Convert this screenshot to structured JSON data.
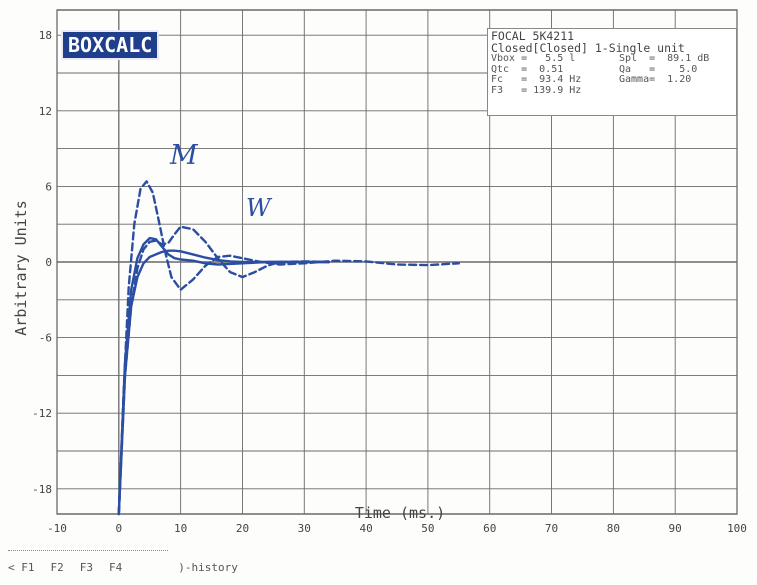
{
  "app": {
    "logo": "BOXCALC"
  },
  "info": {
    "driver": "FOCAL 5K4211",
    "config": "Closed[Closed] 1-Single unit",
    "rows": [
      {
        "left": "Vbox =   5.5 l",
        "right": "Spl  =  89.1 dB"
      },
      {
        "left": "Qtc  =  0.51",
        "right": "Qa   =    5.0"
      },
      {
        "left": "Fc   =  93.4 Hz",
        "right": "Gamma=  1.20"
      },
      {
        "left": "F3   = 139.9 Hz",
        "right": ""
      }
    ]
  },
  "annotations": {
    "m": "M",
    "w": "W"
  },
  "footer": {
    "keys": [
      "< F1",
      "F2",
      "F3",
      "F4"
    ],
    "history": ")-history"
  },
  "colors": {
    "curve": "#2b4ea3",
    "grid": "#6a6a6a",
    "axes": "#444444"
  },
  "chart_data": {
    "type": "line",
    "xlabel": "Time (ms.)",
    "ylabel": "Arbitrary Units",
    "xlim": [
      -10,
      100
    ],
    "ylim": [
      -20,
      20
    ],
    "xticks": [
      -10,
      0,
      10,
      20,
      30,
      40,
      50,
      60,
      70,
      80,
      90,
      100
    ],
    "yticks": [
      18,
      12,
      6,
      0,
      -6,
      -12,
      -18
    ],
    "grid": true,
    "series": [
      {
        "style": "dashed",
        "x": [
          0,
          0.8,
          1.6,
          2.5,
          3.5,
          4.5,
          5.5,
          6.5,
          7.5,
          8.5,
          10,
          12,
          14,
          16,
          18,
          20,
          23,
          26,
          30,
          35,
          40,
          45,
          50,
          55
        ],
        "y": [
          -20,
          -10,
          -2,
          3,
          5.8,
          6.4,
          5.5,
          3.2,
          0.8,
          -1.2,
          -2.2,
          -1.4,
          -0.3,
          0.4,
          0.5,
          0.3,
          0,
          -0.2,
          -0.1,
          0.1,
          0.05,
          -0.2,
          -0.25,
          -0.1
        ]
      },
      {
        "style": "dashed",
        "x": [
          0,
          1,
          2,
          3,
          4,
          5,
          6,
          7,
          8,
          9,
          10,
          12,
          14,
          16,
          18,
          20,
          22,
          24,
          26,
          30,
          34
        ],
        "y": [
          -20,
          -9,
          -3.5,
          -0.5,
          1.0,
          1.6,
          1.7,
          1.4,
          1.5,
          2.2,
          2.8,
          2.6,
          1.6,
          0.3,
          -0.8,
          -1.2,
          -0.8,
          -0.3,
          0,
          0.05,
          0
        ]
      },
      {
        "style": "solid",
        "x": [
          0,
          1,
          2,
          3,
          4,
          5,
          6,
          7,
          8,
          9,
          10,
          12,
          14,
          16,
          18,
          20,
          24,
          28,
          34
        ],
        "y": [
          -20,
          -8,
          -2.2,
          0.3,
          1.4,
          1.9,
          1.8,
          1.2,
          0.6,
          0.3,
          0.2,
          0.1,
          -0.1,
          -0.2,
          -0.15,
          -0.1,
          0,
          0,
          0
        ]
      },
      {
        "style": "solid",
        "x": [
          0,
          1,
          2,
          3,
          4,
          5,
          6,
          7,
          8,
          9,
          10,
          12,
          14,
          16,
          18,
          20,
          24,
          28,
          34
        ],
        "y": [
          -20,
          -9,
          -3.5,
          -1.2,
          -0.1,
          0.4,
          0.6,
          0.8,
          0.9,
          0.9,
          0.85,
          0.6,
          0.35,
          0.15,
          0.05,
          0,
          0,
          0,
          0
        ]
      }
    ]
  }
}
